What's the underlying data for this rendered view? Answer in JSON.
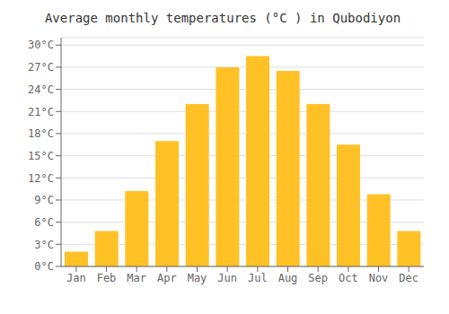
{
  "chart_data": {
    "type": "bar",
    "title": "Average monthly temperatures (°C ) in Qubodiyon",
    "categories": [
      "Jan",
      "Feb",
      "Mar",
      "Apr",
      "May",
      "Jun",
      "Jul",
      "Aug",
      "Sep",
      "Oct",
      "Nov",
      "Dec"
    ],
    "values": [
      2.0,
      4.8,
      10.2,
      17.0,
      22.0,
      27.0,
      28.5,
      26.5,
      22.0,
      16.5,
      9.8,
      4.8
    ],
    "color": "#FFC125",
    "ylim": [
      0,
      31
    ],
    "yticks": [
      {
        "value": 0,
        "label": "0°C"
      },
      {
        "value": 3,
        "label": "3°C"
      },
      {
        "value": 6,
        "label": "6°C"
      },
      {
        "value": 9,
        "label": "9°C"
      },
      {
        "value": 12,
        "label": "12°C"
      },
      {
        "value": 15,
        "label": "15°C"
      },
      {
        "value": 18,
        "label": "18°C"
      },
      {
        "value": 21,
        "label": "21°C"
      },
      {
        "value": 24,
        "label": "24°C"
      },
      {
        "value": 27,
        "label": "27°C"
      },
      {
        "value": 30,
        "label": "30°C"
      }
    ],
    "grid": true
  }
}
